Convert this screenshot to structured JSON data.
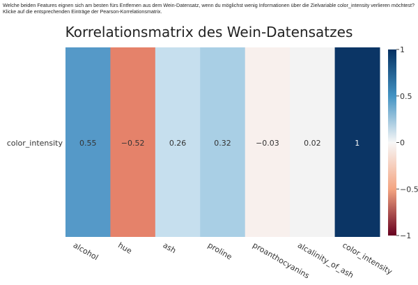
{
  "question": "Welche beiden Features eignen sich am besten fürs Entfernen aus dem Wein-Datensatz, wenn du möglichst wenig Informationen über die Zielvariable color_intensity verlieren möchtest? Klicke auf die entsprechenden Einträge der Pearson-Korrelationsmatrix.",
  "chart_data": {
    "type": "heatmap",
    "title": "Korrelationsmatrix des Wein-Datensatzes",
    "y_categories": [
      "color_intensity"
    ],
    "x_categories": [
      "alcohol",
      "hue",
      "ash",
      "proline",
      "proanthocyanins",
      "alcalinity_of_ash",
      "color_intensity"
    ],
    "values": [
      0.55,
      -0.52,
      0.26,
      0.32,
      -0.03,
      0.02,
      1
    ],
    "value_labels": [
      "0.55",
      "−0.52",
      "0.26",
      "0.32",
      "−0.03",
      "0.02",
      "1"
    ],
    "colorscale": "RdBu",
    "zlim": [
      -1,
      1
    ],
    "colorbar_ticks": [
      "1",
      "0.5",
      "0",
      "−0.5",
      "−1"
    ],
    "colorbar_tick_values": [
      1,
      0.5,
      0,
      -0.5,
      -1
    ],
    "cell_colors": [
      "#5599c8",
      "#e5826a",
      "#c6dfee",
      "#a9cfe5",
      "#f8f0ed",
      "#f3f3f3",
      "#0b3565"
    ]
  }
}
